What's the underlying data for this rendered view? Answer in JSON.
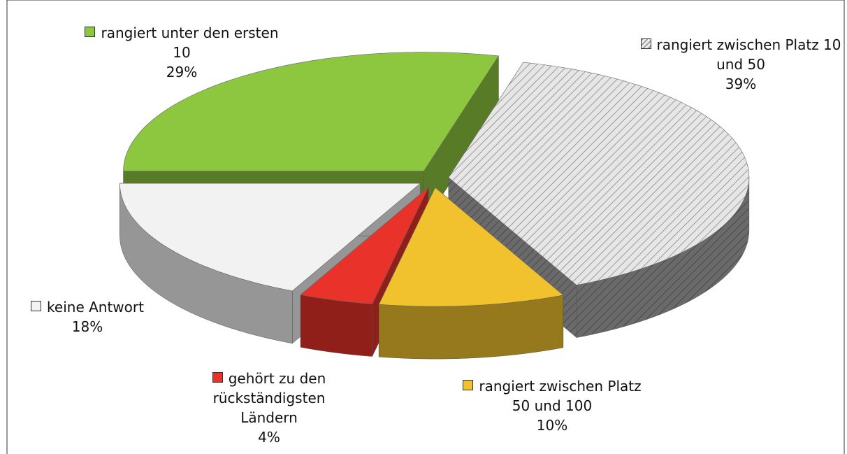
{
  "chart_data": {
    "type": "pie",
    "categories": [
      "rangiert unter den ersten 10",
      "rangiert zwischen Platz 10 und 50",
      "rangiert zwischen Platz 50 und 100",
      "gehört zu den rückständigsten Ländern",
      "keine Antwort"
    ],
    "values": [
      29,
      39,
      10,
      4,
      18
    ],
    "value_labels": [
      "29%",
      "39%",
      "10%",
      "4%",
      "18%"
    ],
    "colors": [
      "#8dc63f",
      "#d4d4d4",
      "#f2c12e",
      "#e8322a",
      "#f2f2f2"
    ],
    "hatched": [
      false,
      true,
      false,
      false,
      false
    ]
  }
}
